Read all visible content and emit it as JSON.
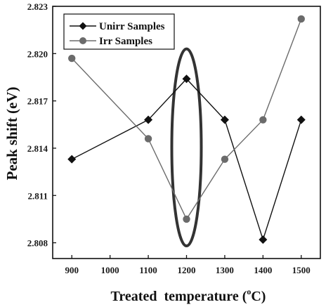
{
  "chart_data": {
    "type": "line",
    "x": [
      900,
      1100,
      1200,
      1300,
      1400,
      1500
    ],
    "x_ticks": [
      "900",
      "1000",
      "1100",
      "1200",
      "1300",
      "1400",
      "1500"
    ],
    "xlim": [
      850,
      1550
    ],
    "y_ticks": [
      "2.808",
      "2.811",
      "2.814",
      "2.817",
      "2.820",
      "2.823"
    ],
    "ylim": [
      2.807,
      2.823
    ],
    "xlabel_text": "Treated  temperature (",
    "xlabel_sup": "o",
    "xlabel_unit": "C)",
    "ylabel": "Peak shift (eV)",
    "legend_position": "top-left",
    "highlight": {
      "shape": "ellipse",
      "x": 1200,
      "y_range": [
        2.8078,
        2.8203
      ]
    },
    "series": [
      {
        "name": "Unirr Samples",
        "marker": "diamond",
        "color": "#111111",
        "values": [
          2.8133,
          2.8158,
          2.8184,
          2.8158,
          2.8082,
          2.8158
        ]
      },
      {
        "name": "Irr Samples",
        "marker": "circle",
        "color": "#6b6b6b",
        "values": [
          2.8197,
          2.8146,
          2.8095,
          2.8133,
          2.8158,
          2.8222
        ]
      }
    ]
  }
}
